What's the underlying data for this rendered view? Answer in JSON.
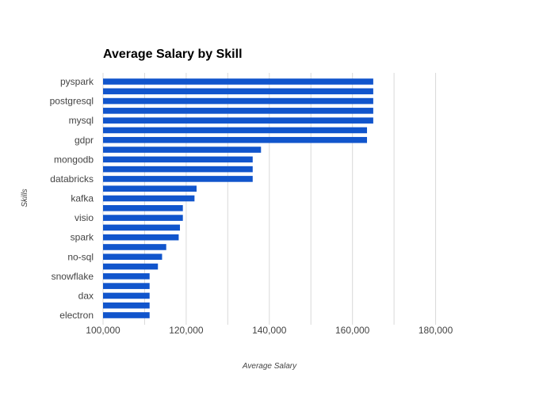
{
  "chart_data": {
    "type": "bar",
    "orientation": "horizontal",
    "title": "Average Salary by Skill",
    "xlabel": "Average Salary",
    "ylabel": "Skills",
    "xlim": [
      100000,
      190000
    ],
    "xticks": [
      100000,
      120000,
      140000,
      160000,
      180000
    ],
    "xtick_labels": [
      "100,000",
      "120,000",
      "140,000",
      "160,000",
      "180,000"
    ],
    "grid": true,
    "bar_color": "#1155cc",
    "categories": [
      "pyspark",
      "",
      "postgresql",
      "",
      "mysql",
      "",
      "gdpr",
      "",
      "mongodb",
      "",
      "databricks",
      "",
      "kafka",
      "",
      "visio",
      "",
      "spark",
      "",
      "no-sql",
      "",
      "snowflake",
      "",
      "dax",
      "",
      "electron"
    ],
    "values": [
      165000,
      165000,
      165000,
      165000,
      165000,
      163500,
      163500,
      138000,
      136000,
      136000,
      136000,
      122500,
      122000,
      119200,
      119200,
      118500,
      118200,
      115200,
      114200,
      113200,
      111200,
      111200,
      111200,
      111200,
      111200
    ]
  }
}
